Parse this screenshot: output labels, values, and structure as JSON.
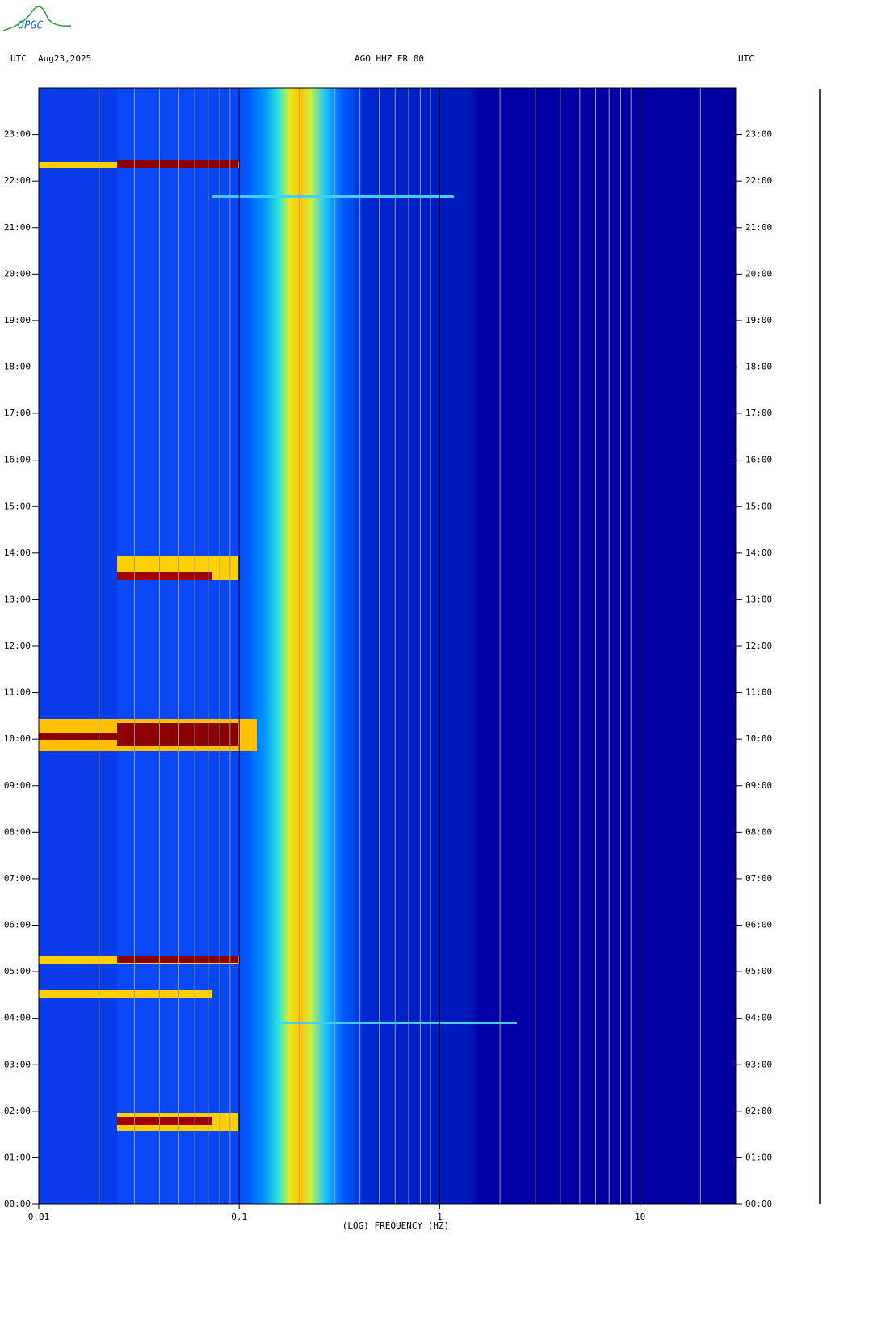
{
  "logo": "OPGC",
  "chart_data": {
    "type": "spectrogram",
    "title": "AGO HHZ FR 00",
    "date": "Aug23,2025",
    "timezone": "UTC",
    "xlabel": "(LOG) FREQUENCY (HZ)",
    "xscale": "log",
    "xlim": [
      0.01,
      30
    ],
    "ylim": [
      0,
      24
    ],
    "xticks": [
      {
        "value": 0.01,
        "label": "0,01"
      },
      {
        "value": 0.1,
        "label": "0,1"
      },
      1,
      10
    ],
    "xgrid": [
      0.02,
      0.03,
      0.04,
      0.05,
      0.06,
      0.07,
      0.08,
      0.09,
      0.2,
      0.3,
      0.4,
      0.5,
      0.6,
      0.7,
      0.8,
      0.9,
      2,
      3,
      4,
      5,
      6,
      7,
      8,
      9,
      20
    ],
    "yticks": [
      {
        "value": 0,
        "label": "00:00"
      },
      {
        "value": 1,
        "label": "01:00"
      },
      {
        "value": 2,
        "label": "02:00"
      },
      {
        "value": 3,
        "label": "03:00"
      },
      {
        "value": 4,
        "label": "04:00"
      },
      {
        "value": 5,
        "label": "05:00"
      },
      {
        "value": 6,
        "label": "06:00"
      },
      {
        "value": 7,
        "label": "07:00"
      },
      {
        "value": 8,
        "label": "08:00"
      },
      {
        "value": 9,
        "label": "09:00"
      },
      {
        "value": 10,
        "label": "10:00"
      },
      {
        "value": 11,
        "label": "11:00"
      },
      {
        "value": 12,
        "label": "12:00"
      },
      {
        "value": 13,
        "label": "13:00"
      },
      {
        "value": 14,
        "label": "14:00"
      },
      {
        "value": 15,
        "label": "15:00"
      },
      {
        "value": 16,
        "label": "16:00"
      },
      {
        "value": 17,
        "label": "17:00"
      },
      {
        "value": 18,
        "label": "18:00"
      },
      {
        "value": 19,
        "label": "19:00"
      },
      {
        "value": 20,
        "label": "20:00"
      },
      {
        "value": 21,
        "label": "21:00"
      },
      {
        "value": 22,
        "label": "22:00"
      },
      {
        "value": 23,
        "label": "23:00"
      }
    ]
  }
}
